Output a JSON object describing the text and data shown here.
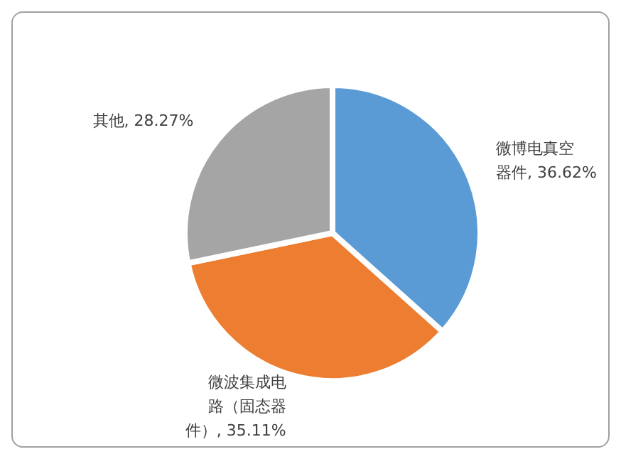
{
  "chart_data": {
    "type": "pie",
    "categories": [
      "微博电真空器件",
      "微波集成电路（固态器件）",
      "其他"
    ],
    "values": [
      36.62,
      35.11,
      28.27
    ],
    "colors": [
      "#5b9bd5",
      "#ed7d31",
      "#a5a5a5"
    ],
    "value_labels": [
      ", 36.62%",
      ", 35.11%",
      ", 28.27%"
    ],
    "legend": false
  }
}
